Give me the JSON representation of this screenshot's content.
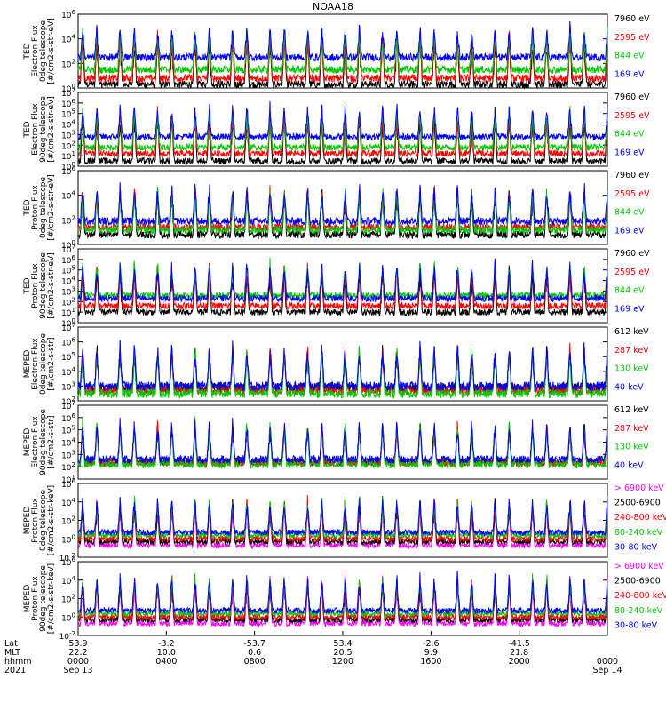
{
  "chart_data": {
    "title": "NOAA18",
    "panels": [
      {
        "type": "line",
        "ylabel_lines": [
          "TED",
          "Electron Flux",
          "0deg telescope",
          "[#/cm2-s-str-eV]"
        ],
        "y_log": true,
        "ylim": [
          1,
          1000000
        ],
        "y_tick_exponents": [
          0,
          2,
          4,
          6
        ],
        "series": [
          {
            "name": "7960 eV",
            "color": "#000000",
            "baseline_log": 0.3
          },
          {
            "name": "2595 eV",
            "color": "#ff0000",
            "baseline_log": 0.8
          },
          {
            "name": "844 eV",
            "color": "#00c800",
            "baseline_log": 1.5
          },
          {
            "name": "169 eV",
            "color": "#0000ff",
            "baseline_log": 2.5
          }
        ]
      },
      {
        "type": "line",
        "ylabel_lines": [
          "TED",
          "Electron Flux",
          "90deg telescope",
          "[#/cm2-s-str-eV]"
        ],
        "y_log": true,
        "ylim": [
          1,
          10000000
        ],
        "y_tick_exponents": [
          0,
          1,
          2,
          3,
          4,
          5,
          6,
          7
        ],
        "series": [
          {
            "name": "7960 eV",
            "color": "#000000",
            "baseline_log": 0.5
          },
          {
            "name": "2595 eV",
            "color": "#ff0000",
            "baseline_log": 1.2
          },
          {
            "name": "844 eV",
            "color": "#00c800",
            "baseline_log": 1.8
          },
          {
            "name": "169 eV",
            "color": "#0000ff",
            "baseline_log": 2.8
          }
        ]
      },
      {
        "type": "line",
        "ylabel_lines": [
          "TED",
          "Proton Flux",
          "0deg telescope",
          "[#/cm2-s-str-eV]"
        ],
        "y_log": true,
        "ylim": [
          1,
          1000000
        ],
        "y_tick_exponents": [
          0,
          2,
          4,
          6
        ],
        "series": [
          {
            "name": "7960 eV",
            "color": "#000000",
            "baseline_log": 0.8
          },
          {
            "name": "2595 eV",
            "color": "#ff0000",
            "baseline_log": 1.4
          },
          {
            "name": "844 eV",
            "color": "#00c800",
            "baseline_log": 1.2
          },
          {
            "name": "169 eV",
            "color": "#0000ff",
            "baseline_log": 1.9
          }
        ]
      },
      {
        "type": "line",
        "ylabel_lines": [
          "TED",
          "Proton Flux",
          "90deg telescope",
          "[#/cm2-s-str-eV]"
        ],
        "y_log": true,
        "ylim": [
          1,
          10000000
        ],
        "y_tick_exponents": [
          0,
          1,
          2,
          3,
          4,
          5,
          6,
          7
        ],
        "series": [
          {
            "name": "7960 eV",
            "color": "#000000",
            "baseline_log": 1.0
          },
          {
            "name": "2595 eV",
            "color": "#ff0000",
            "baseline_log": 1.6
          },
          {
            "name": "844 eV",
            "color": "#00c800",
            "baseline_log": 2.6
          },
          {
            "name": "169 eV",
            "color": "#0000ff",
            "baseline_log": 2.3
          }
        ]
      },
      {
        "type": "line",
        "ylabel_lines": [
          "MEPED",
          "Electron Flux",
          "0deg telescope",
          "[#/cm2-s-str]"
        ],
        "y_log": true,
        "ylim": [
          100,
          10000000
        ],
        "y_tick_exponents": [
          2,
          3,
          4,
          5,
          6,
          7
        ],
        "series": [
          {
            "name": "612 keV",
            "color": "#000000",
            "baseline_log": 2.9
          },
          {
            "name": "287 keV",
            "color": "#ff0000",
            "baseline_log": 2.7
          },
          {
            "name": "130 keV",
            "color": "#00c800",
            "baseline_log": 2.5
          },
          {
            "name": "40 keV",
            "color": "#0000ff",
            "baseline_log": 3.0
          }
        ]
      },
      {
        "type": "line",
        "ylabel_lines": [
          "MEPED",
          "Electron Flux",
          "90deg telescope",
          "[#/cm2-s-str]"
        ],
        "y_log": true,
        "ylim": [
          10,
          10000000
        ],
        "y_tick_exponents": [
          1,
          2,
          3,
          4,
          5,
          6,
          7
        ],
        "series": [
          {
            "name": "612 keV",
            "color": "#000000",
            "baseline_log": 2.4
          },
          {
            "name": "287 keV",
            "color": "#ff0000",
            "baseline_log": 2.3
          },
          {
            "name": "130 keV",
            "color": "#00c800",
            "baseline_log": 2.2
          },
          {
            "name": "40 keV",
            "color": "#0000ff",
            "baseline_log": 2.6
          }
        ]
      },
      {
        "type": "line",
        "ylabel_lines": [
          "MEPED",
          "Proton Flux",
          "0deg telescope",
          "[#/cm2-s-str-keV]"
        ],
        "y_log": true,
        "ylim": [
          0.01,
          1000000
        ],
        "y_tick_exponents": [
          -2,
          0,
          2,
          4,
          6
        ],
        "series": [
          {
            "name": "> 6900 keV",
            "color": "#ff00ff",
            "baseline_log": -0.7
          },
          {
            "name": "2500-6900",
            "color": "#000000",
            "baseline_log": -0.3
          },
          {
            "name": "240-800 keV",
            "color": "#ff0000",
            "baseline_log": 0.0
          },
          {
            "name": "80-240 keV",
            "color": "#00c800",
            "baseline_log": 0.4
          },
          {
            "name": "30-80 keV",
            "color": "#0000ff",
            "baseline_log": 0.7
          }
        ]
      },
      {
        "type": "line",
        "ylabel_lines": [
          "MEPED",
          "Proton Flux",
          "90deg telescope",
          "[#/cm2-s-str-keV]"
        ],
        "y_log": true,
        "ylim": [
          0.01,
          1000000
        ],
        "y_tick_exponents": [
          -2,
          0,
          2,
          4,
          6
        ],
        "series": [
          {
            "name": "> 6900 keV",
            "color": "#ff00ff",
            "baseline_log": -0.7
          },
          {
            "name": "2500-6900",
            "color": "#000000",
            "baseline_log": -0.3
          },
          {
            "name": "240-800 keV",
            "color": "#ff0000",
            "baseline_log": 0.0
          },
          {
            "name": "80-240 keV",
            "color": "#00c800",
            "baseline_log": 0.4
          },
          {
            "name": "30-80 keV",
            "color": "#0000ff",
            "baseline_log": 0.7
          }
        ]
      }
    ],
    "x_axis": {
      "row_labels": [
        "Lat",
        "MLT",
        "hhmm",
        "2021"
      ],
      "ticks": [
        {
          "lat": "53.9",
          "mlt": "22.2",
          "hhmm": "0000",
          "date": "Sep 13"
        },
        {
          "lat": "-3.2",
          "mlt": "10.0",
          "hhmm": "0400",
          "date": ""
        },
        {
          "lat": "-53.7",
          "mlt": "0.6",
          "hhmm": "0800",
          "date": ""
        },
        {
          "lat": "53.4",
          "mlt": "20.5",
          "hhmm": "1200",
          "date": ""
        },
        {
          "lat": "-2.6",
          "mlt": "9.9",
          "hhmm": "1600",
          "date": ""
        },
        {
          "lat": "-41.5",
          "mlt": "21.8",
          "hhmm": "2000",
          "date": ""
        },
        {
          "lat": "",
          "mlt": "",
          "hhmm": "0000",
          "date": "Sep 14"
        }
      ],
      "xlim_hours": [
        0,
        24
      ],
      "orbit_period_hours": 1.7
    }
  }
}
